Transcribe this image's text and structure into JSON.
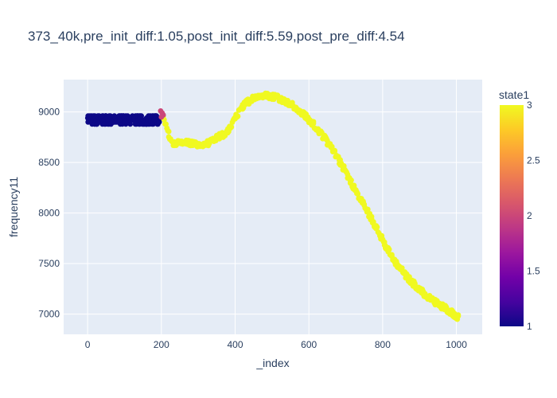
{
  "chart_data": {
    "type": "scatter",
    "title": "373_40k,pre_init_diff:1.05,post_init_diff:5.59,post_pre_diff:4.54",
    "xlabel": "_index",
    "ylabel": "frequency11",
    "xlim": [
      -65,
      1070
    ],
    "ylim": [
      6800,
      9320
    ],
    "x_ticks": [
      0,
      200,
      400,
      600,
      800,
      1000
    ],
    "y_ticks": [
      7000,
      7500,
      8000,
      8500,
      9000
    ],
    "grid": true,
    "colorbar": {
      "title": "state1",
      "range": [
        1,
        3
      ],
      "ticks": [
        1,
        1.5,
        2,
        2.5,
        3
      ],
      "tick_labels": [
        "1",
        "1.5",
        "2",
        "2.5",
        "3"
      ],
      "colorscale": [
        "#0d0887",
        "#46039f",
        "#7201a8",
        "#9c179e",
        "#bd3786",
        "#d8576b",
        "#ed7953",
        "#fb9f3a",
        "#fdca26",
        "#f0f921"
      ]
    },
    "series": [
      {
        "state": 1,
        "x_range": [
          0,
          195
        ],
        "y_values": [
          8880,
          8900,
          8920,
          8940,
          8960
        ]
      },
      {
        "state": 2,
        "points": [
          [
            198,
            9010
          ],
          [
            202,
            8990
          ],
          [
            205,
            8970
          ],
          [
            200,
            8950
          ]
        ]
      },
      {
        "state": 3,
        "curve": [
          [
            205,
            8950
          ],
          [
            215,
            8820
          ],
          [
            230,
            8700
          ],
          [
            250,
            8690
          ],
          [
            270,
            8700
          ],
          [
            290,
            8680
          ],
          [
            310,
            8670
          ],
          [
            330,
            8690
          ],
          [
            350,
            8740
          ],
          [
            370,
            8780
          ],
          [
            390,
            8860
          ],
          [
            410,
            9000
          ],
          [
            430,
            9090
          ],
          [
            450,
            9140
          ],
          [
            470,
            9160
          ],
          [
            490,
            9160
          ],
          [
            510,
            9150
          ],
          [
            530,
            9120
          ],
          [
            550,
            9080
          ],
          [
            570,
            9020
          ],
          [
            590,
            8960
          ],
          [
            610,
            8890
          ],
          [
            630,
            8800
          ],
          [
            650,
            8700
          ],
          [
            670,
            8590
          ],
          [
            690,
            8470
          ],
          [
            710,
            8340
          ],
          [
            730,
            8200
          ],
          [
            750,
            8080
          ],
          [
            770,
            7940
          ],
          [
            790,
            7800
          ],
          [
            810,
            7660
          ],
          [
            830,
            7540
          ],
          [
            850,
            7440
          ],
          [
            870,
            7350
          ],
          [
            890,
            7280
          ],
          [
            910,
            7210
          ],
          [
            930,
            7150
          ],
          [
            950,
            7100
          ],
          [
            970,
            7060
          ],
          [
            990,
            7010
          ],
          [
            1005,
            6970
          ]
        ]
      }
    ]
  }
}
